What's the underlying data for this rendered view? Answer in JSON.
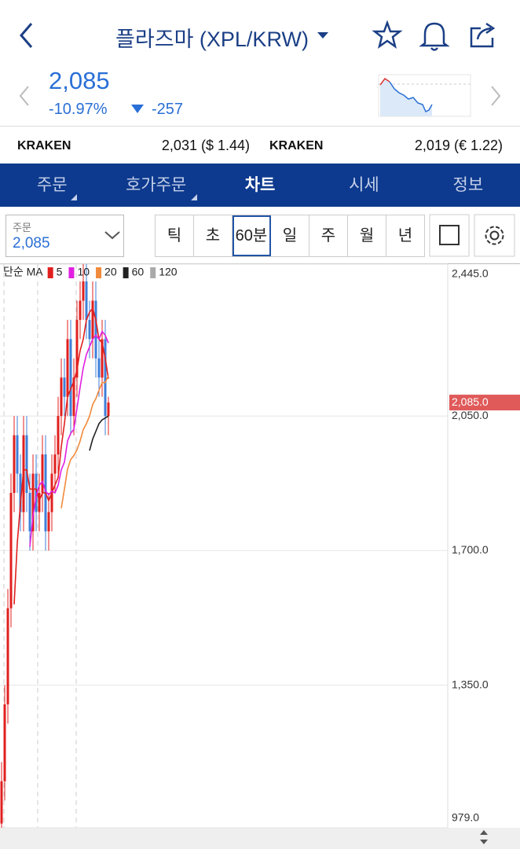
{
  "header": {
    "title": "플라즈마 (XPL/KRW)"
  },
  "quote": {
    "price": "2,085",
    "change_pct": "-10.97%",
    "change": "-257"
  },
  "exchanges": [
    {
      "name": "KRAKEN",
      "price": "2,031 ($ 1.44)"
    },
    {
      "name": "KRAKEN",
      "price": "2,019 (€ 1.22)"
    }
  ],
  "tabs": [
    "주문",
    "호가주문",
    "차트",
    "시세",
    "정보"
  ],
  "order_box": {
    "label": "주문",
    "value": "2,085"
  },
  "intervals": [
    "틱",
    "초",
    "60분",
    "일",
    "주",
    "월",
    "년"
  ],
  "chart_data": {
    "type": "candlestick",
    "legend_title": "단순 MA",
    "up_color": "#e0201f",
    "down_color": "#3f7fd8",
    "ylim": [
      979,
      2445
    ],
    "yticks": [
      {
        "value": 979,
        "label": "979.0"
      },
      {
        "value": 1350,
        "label": "1,350.0"
      },
      {
        "value": 1700,
        "label": "1,700.0"
      },
      {
        "value": 2050,
        "label": "2,050.0"
      },
      {
        "value": 2445,
        "label": "2,445.0"
      }
    ],
    "grid": true,
    "price_marker": {
      "value": 2085,
      "label": "2,085.0",
      "color": "#e05a5a"
    },
    "open": [
      990,
      1100,
      1300,
      1550,
      1850,
      2000,
      1900,
      1800,
      2000,
      1850,
      1750,
      1900,
      1800,
      1850,
      1950,
      1750,
      1800,
      1900,
      1950,
      2050,
      2150,
      2100,
      2250,
      2050,
      2150,
      2300,
      2350,
      2400,
      2300,
      2250,
      2350,
      2200,
      2150,
      2250,
      2050
    ],
    "high": [
      1150,
      1350,
      1600,
      1900,
      2050,
      2050,
      1950,
      2050,
      2050,
      1900,
      1950,
      1950,
      1900,
      2000,
      2000,
      1850,
      1950,
      2000,
      2100,
      2200,
      2200,
      2300,
      2300,
      2200,
      2350,
      2400,
      2445,
      2445,
      2350,
      2400,
      2400,
      2250,
      2300,
      2300,
      2100
    ],
    "low": [
      979,
      1050,
      1250,
      1500,
      1800,
      1850,
      1750,
      1750,
      1800,
      1700,
      1700,
      1750,
      1750,
      1800,
      1700,
      1700,
      1750,
      1850,
      1900,
      2000,
      2050,
      2050,
      2000,
      2000,
      2100,
      2250,
      2300,
      2250,
      2200,
      2200,
      2150,
      2100,
      2100,
      2000,
      2000
    ],
    "close": [
      1100,
      1300,
      1550,
      1850,
      2000,
      1900,
      1800,
      2000,
      1850,
      1750,
      1900,
      1800,
      1850,
      1950,
      1750,
      1800,
      1900,
      1950,
      2050,
      2150,
      2100,
      2250,
      2050,
      2150,
      2300,
      2350,
      2400,
      2300,
      2250,
      2350,
      2200,
      2150,
      2250,
      2050,
      2085
    ],
    "series": [
      {
        "name": "5",
        "color": "#e0201f",
        "values": [
          null,
          null,
          null,
          null,
          1560,
          1720,
          1820,
          1910,
          1910,
          1860,
          1860,
          1860,
          1830,
          1850,
          1850,
          1830,
          1850,
          1870,
          1890,
          1970,
          2030,
          2100,
          2120,
          2140,
          2170,
          2220,
          2250,
          2300,
          2320,
          2330,
          2300,
          2250,
          2240,
          2200,
          2147
        ]
      },
      {
        "name": "10",
        "color": "#e020e0",
        "values": [
          null,
          null,
          null,
          null,
          null,
          null,
          null,
          null,
          null,
          1710,
          1790,
          1840,
          1870,
          1880,
          1855,
          1845,
          1855,
          1850,
          1870,
          1910,
          1930,
          1985,
          2005,
          2015,
          2070,
          2125,
          2175,
          2210,
          2230,
          2250,
          2260,
          2250,
          2270,
          2260,
          2240
        ]
      },
      {
        "name": "20",
        "color": "#f08a3c",
        "values": [
          null,
          null,
          null,
          null,
          null,
          null,
          null,
          null,
          null,
          null,
          null,
          null,
          null,
          null,
          null,
          null,
          null,
          null,
          null,
          1810,
          1860,
          1912,
          1937,
          1947,
          1962,
          1985,
          2015,
          2030,
          2050,
          2080,
          2095,
          2117,
          2137,
          2137,
          2155
        ]
      },
      {
        "name": "60",
        "color": "#222222",
        "values": [
          null,
          null,
          null,
          null,
          null,
          null,
          null,
          null,
          null,
          null,
          null,
          null,
          null,
          null,
          null,
          null,
          null,
          null,
          null,
          null,
          null,
          null,
          null,
          null,
          null,
          null,
          null,
          null,
          1960,
          1990,
          2010,
          2030,
          2040,
          2045,
          2050
        ]
      },
      {
        "name": "120",
        "color": "#aaaaaa",
        "values": [
          null,
          null,
          null,
          null,
          null,
          null,
          null,
          null,
          null,
          null,
          null,
          null,
          null,
          null,
          null,
          null,
          null,
          null,
          null,
          null,
          null,
          null,
          null,
          null,
          null,
          null,
          null,
          null,
          null,
          null,
          null,
          null,
          null,
          null,
          null
        ]
      }
    ]
  }
}
